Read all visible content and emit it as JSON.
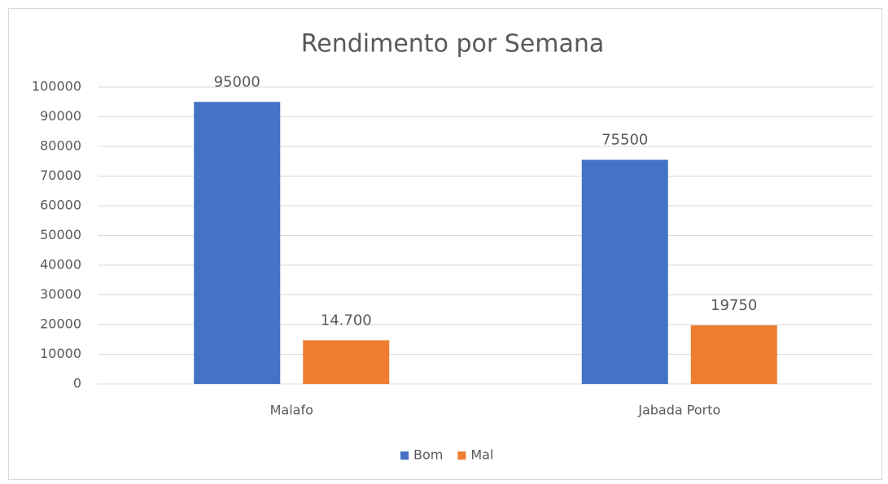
{
  "chart_data": {
    "type": "bar",
    "title": "Rendimento por Semana",
    "categories": [
      "Malafo",
      "Jabada Porto"
    ],
    "series": [
      {
        "name": "Bom",
        "color": "#4472c4",
        "values": [
          95000,
          75500
        ]
      },
      {
        "name": "Mal",
        "color": "#ed7d31",
        "values": [
          14700,
          19750
        ],
        "value_labels": [
          "14.700",
          "19750"
        ]
      }
    ],
    "ylim": [
      0,
      100000
    ],
    "yticks": [
      0,
      10000,
      20000,
      30000,
      40000,
      50000,
      60000,
      70000,
      80000,
      90000,
      100000
    ],
    "grid": true,
    "legend": "bottom"
  }
}
